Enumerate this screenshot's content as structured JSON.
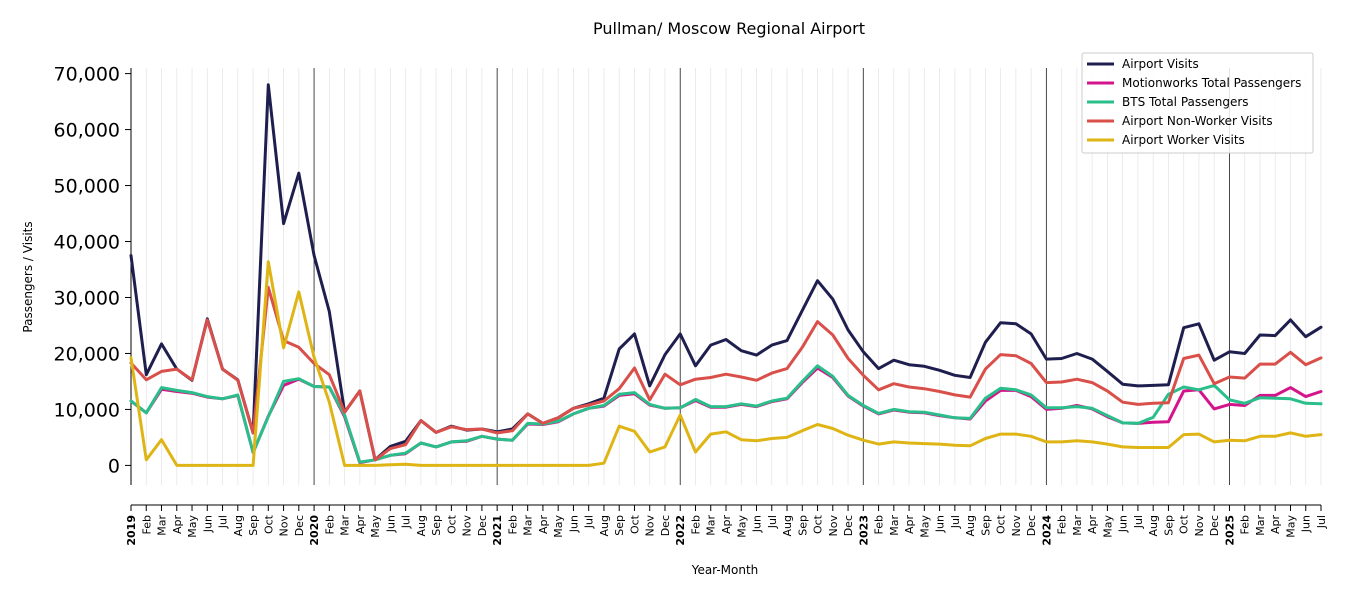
{
  "chart_data": {
    "type": "line",
    "title": "Pullman/ Moscow Regional Airport",
    "xlabel": "Year-Month",
    "ylabel": "Passengers / Visits",
    "ylim": [
      -3500,
      71000
    ],
    "yticks": [
      0,
      10000,
      20000,
      30000,
      40000,
      50000,
      60000,
      70000
    ],
    "ytick_labels": [
      "0",
      "10,000",
      "20,000",
      "30,000",
      "40,000",
      "50,000",
      "60,000",
      "70,000"
    ],
    "grid": "vertical-monthly",
    "legend_position": "top-right",
    "x": [
      "2019-01",
      "2019-02",
      "2019-03",
      "2019-04",
      "2019-05",
      "2019-06",
      "2019-07",
      "2019-08",
      "2019-09",
      "2019-10",
      "2019-11",
      "2019-12",
      "2020-01",
      "2020-02",
      "2020-03",
      "2020-04",
      "2020-05",
      "2020-06",
      "2020-07",
      "2020-08",
      "2020-09",
      "2020-10",
      "2020-11",
      "2020-12",
      "2021-01",
      "2021-02",
      "2021-03",
      "2021-04",
      "2021-05",
      "2021-06",
      "2021-07",
      "2021-08",
      "2021-09",
      "2021-10",
      "2021-11",
      "2021-12",
      "2022-01",
      "2022-02",
      "2022-03",
      "2022-04",
      "2022-05",
      "2022-06",
      "2022-07",
      "2022-08",
      "2022-09",
      "2022-10",
      "2022-11",
      "2022-12",
      "2023-01",
      "2023-02",
      "2023-03",
      "2023-04",
      "2023-05",
      "2023-06",
      "2023-07",
      "2023-08",
      "2023-09",
      "2023-10",
      "2023-11",
      "2023-12",
      "2024-01",
      "2024-02",
      "2024-03",
      "2024-04",
      "2024-05",
      "2024-06",
      "2024-07",
      "2024-08",
      "2024-09",
      "2024-10",
      "2024-11",
      "2024-12",
      "2025-01",
      "2025-02",
      "2025-03",
      "2025-04",
      "2025-05",
      "2025-06",
      "2025-07"
    ],
    "xtick_labels": [
      "2019",
      "Feb",
      "Mar",
      "Apr",
      "May",
      "Jun",
      "Jul",
      "Aug",
      "Sep",
      "Oct",
      "Nov",
      "Dec",
      "2020",
      "Feb",
      "Mar",
      "Apr",
      "May",
      "Jun",
      "Jul",
      "Aug",
      "Sep",
      "Oct",
      "Nov",
      "Dec",
      "2021",
      "Feb",
      "Mar",
      "Apr",
      "May",
      "Jun",
      "Jul",
      "Aug",
      "Sep",
      "Oct",
      "Nov",
      "Dec",
      "2022",
      "Feb",
      "Mar",
      "Apr",
      "May",
      "Jun",
      "Jul",
      "Aug",
      "Sep",
      "Oct",
      "Nov",
      "Dec",
      "2023",
      "Feb",
      "Mar",
      "Apr",
      "May",
      "Jun",
      "Jul",
      "Aug",
      "Sep",
      "Oct",
      "Nov",
      "Dec",
      "2024",
      "Feb",
      "Mar",
      "Apr",
      "May",
      "Jun",
      "Jul",
      "Aug",
      "Sep",
      "Oct",
      "Nov",
      "Dec",
      "2025",
      "Feb",
      "Mar",
      "Apr",
      "May",
      "Jun",
      "Jul"
    ],
    "series": [
      {
        "name": "Airport Visits",
        "color": "#1f1f4f",
        "values": [
          37500,
          16200,
          21700,
          17200,
          15200,
          26200,
          17200,
          15300,
          5800,
          68000,
          43200,
          52200,
          37500,
          27500,
          9500,
          13300,
          1000,
          3400,
          4300,
          8000,
          5900,
          7000,
          6300,
          6500,
          6000,
          6500,
          9200,
          7500,
          8500,
          10200,
          11000,
          12000,
          20800,
          23500,
          14200,
          19800,
          23500,
          17800,
          21500,
          22500,
          20500,
          19700,
          21500,
          22300,
          27700,
          33000,
          29700,
          24200,
          20300,
          17300,
          18800,
          18000,
          17700,
          17000,
          16100,
          15700,
          22000,
          25500,
          25300,
          23500,
          19000,
          19100,
          20000,
          19000,
          16800,
          14500,
          14200,
          14300,
          14400,
          24600,
          25300,
          18800,
          20300,
          20000,
          23300,
          23200,
          26000,
          23000,
          24700
        ]
      },
      {
        "name": "Motionworks Total Passengers",
        "color": "#d4148b",
        "values": [
          11500,
          9400,
          13600,
          13200,
          12900,
          12200,
          11900,
          12500,
          2300,
          8800,
          14300,
          15400,
          14100,
          14000,
          8700,
          500,
          1000,
          1800,
          2100,
          4000,
          3300,
          4200,
          4300,
          5200,
          4700,
          4500,
          7400,
          7300,
          7800,
          9200,
          10200,
          10600,
          12500,
          12800,
          10800,
          10200,
          10300,
          11600,
          10400,
          10400,
          10900,
          10500,
          11400,
          11900,
          14800,
          17400,
          15700,
          12400,
          10600,
          9200,
          9900,
          9500,
          9400,
          8900,
          8500,
          8300,
          11500,
          13400,
          13400,
          12300,
          10000,
          10200,
          10700,
          10100,
          8700,
          7600,
          7500,
          7700,
          7800,
          13300,
          13500,
          10100,
          10900,
          10700,
          12500,
          12500,
          13900,
          12300,
          13200
        ]
      },
      {
        "name": "BTS Total Passengers",
        "color": "#2abf8a",
        "values": [
          11500,
          9400,
          13900,
          13400,
          13000,
          12300,
          11900,
          12600,
          2300,
          8700,
          15000,
          15500,
          14100,
          14000,
          9000,
          600,
          1000,
          1800,
          2200,
          4000,
          3300,
          4200,
          4400,
          5200,
          4700,
          4500,
          7500,
          7400,
          7900,
          9200,
          10200,
          10700,
          12700,
          13000,
          10900,
          10200,
          10300,
          11800,
          10500,
          10500,
          11000,
          10600,
          11500,
          12000,
          15000,
          17800,
          15900,
          12500,
          10700,
          9300,
          10000,
          9600,
          9500,
          9000,
          8500,
          8400,
          12000,
          13800,
          13500,
          12600,
          10300,
          10300,
          10500,
          10200,
          8900,
          7600,
          7500,
          8600,
          12700,
          14000,
          13500,
          14300,
          11700,
          11100,
          12100,
          12000,
          11900,
          11100,
          11000
        ]
      },
      {
        "name": "Airport Non-Worker Visits",
        "color": "#d94f4a",
        "values": [
          18300,
          15300,
          16800,
          17200,
          15300,
          26000,
          17200,
          15200,
          5800,
          31800,
          22300,
          21100,
          18200,
          16200,
          9500,
          13300,
          1000,
          3000,
          3700,
          8000,
          5900,
          6900,
          6400,
          6500,
          5800,
          6200,
          9200,
          7500,
          8500,
          10200,
          10800,
          11500,
          13700,
          17400,
          11700,
          16300,
          14400,
          15400,
          15700,
          16300,
          15800,
          15200,
          16500,
          17300,
          21100,
          25700,
          23300,
          19100,
          16100,
          13500,
          14600,
          14000,
          13700,
          13200,
          12600,
          12200,
          17200,
          19800,
          19600,
          18200,
          14800,
          14900,
          15400,
          14800,
          13300,
          11300,
          10900,
          11100,
          11200,
          19100,
          19700,
          14600,
          15800,
          15600,
          18100,
          18100,
          20200,
          18000,
          19200
        ]
      },
      {
        "name": "Airport Worker Visits",
        "color": "#dfb516",
        "values": [
          19200,
          1000,
          4600,
          0,
          0,
          0,
          0,
          0,
          0,
          36400,
          21000,
          31000,
          19300,
          11300,
          0,
          0,
          0,
          100,
          200,
          0,
          0,
          0,
          0,
          0,
          0,
          0,
          0,
          0,
          0,
          0,
          0,
          400,
          7000,
          6100,
          2400,
          3300,
          9000,
          2400,
          5600,
          6000,
          4600,
          4400,
          4800,
          5000,
          6200,
          7300,
          6600,
          5400,
          4500,
          3800,
          4200,
          4000,
          3900,
          3800,
          3600,
          3500,
          4800,
          5600,
          5600,
          5200,
          4200,
          4200,
          4400,
          4200,
          3800,
          3300,
          3200,
          3200,
          3200,
          5500,
          5600,
          4200,
          4500,
          4400,
          5200,
          5200,
          5800,
          5200,
          5500
        ]
      }
    ]
  }
}
